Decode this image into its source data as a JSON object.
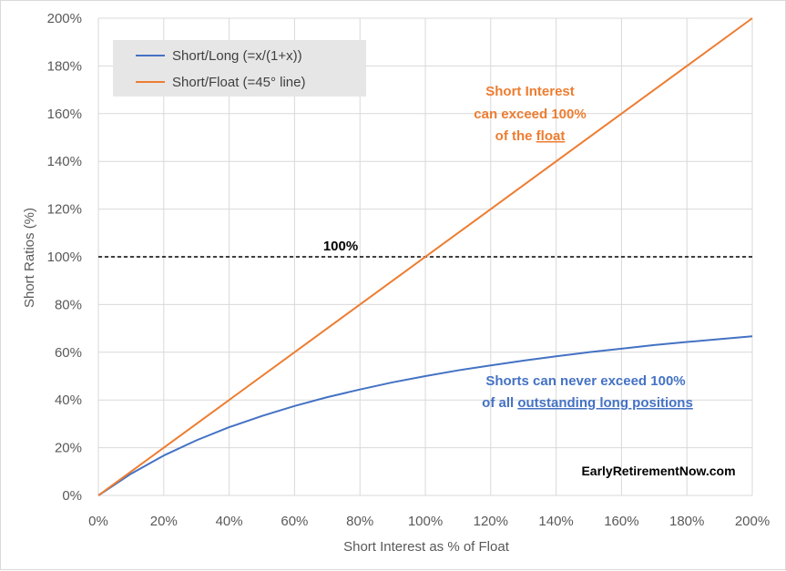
{
  "chart_data": {
    "type": "line",
    "xlabel": "Short Interest as % of Float",
    "ylabel": "Short Ratios (%)",
    "xlim": [
      0,
      200
    ],
    "ylim": [
      0,
      200
    ],
    "x_ticks": [
      "0%",
      "20%",
      "40%",
      "60%",
      "80%",
      "100%",
      "120%",
      "140%",
      "160%",
      "180%",
      "200%"
    ],
    "y_ticks": [
      "0%",
      "20%",
      "40%",
      "60%",
      "80%",
      "100%",
      "120%",
      "140%",
      "160%",
      "180%",
      "200%"
    ],
    "grid": "vertical and horizontal",
    "legend_position": "top-left",
    "series": [
      {
        "name": "Short/Long (=x/(1+x))",
        "color": "#4472c4",
        "x": [
          0,
          10,
          20,
          30,
          40,
          50,
          60,
          70,
          80,
          90,
          100,
          110,
          120,
          130,
          140,
          150,
          160,
          170,
          180,
          190,
          200
        ],
        "y": [
          0,
          9.1,
          16.7,
          23.1,
          28.6,
          33.3,
          37.5,
          41.2,
          44.4,
          47.4,
          50.0,
          52.4,
          54.5,
          56.5,
          58.3,
          60.0,
          61.5,
          63.0,
          64.3,
          65.5,
          66.7
        ]
      },
      {
        "name": "Short/Float (=45° line)",
        "color": "#ed7d31",
        "x": [
          0,
          200
        ],
        "y": [
          0,
          200
        ]
      }
    ],
    "reference_line": {
      "y": 100,
      "label": "100%",
      "style": "dashed",
      "color": "#000000"
    },
    "annotations": [
      {
        "lines": [
          "Short Interest",
          "can exceed 100%",
          "of the "
        ],
        "underlined": "float",
        "color": "#ed7d31"
      },
      {
        "lines": [
          "Shorts can never exceed 100%",
          "of all "
        ],
        "underlined": "outstanding  long positions",
        "color": "#4472c4"
      }
    ],
    "watermark": "EarlyRetirementNow.com"
  }
}
